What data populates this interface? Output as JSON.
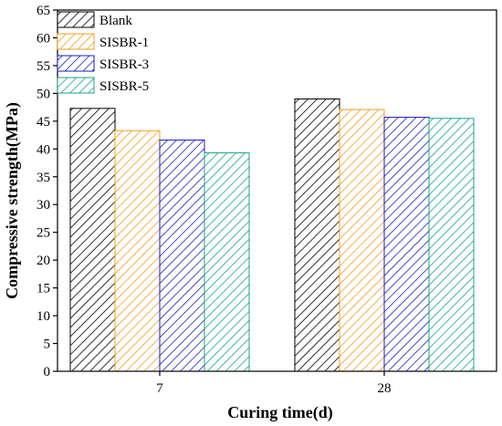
{
  "chart_data": {
    "type": "bar",
    "title": "",
    "xlabel": "Curing time(d)",
    "ylabel": "Compressive strength(MPa)",
    "ylim": [
      0,
      65
    ],
    "yticks": [
      0,
      5,
      10,
      15,
      20,
      25,
      30,
      35,
      40,
      45,
      50,
      55,
      60,
      65
    ],
    "categories": [
      "7",
      "28"
    ],
    "series": [
      {
        "name": "Blank",
        "color": "#000000",
        "values": [
          47.3,
          49.0
        ]
      },
      {
        "name": "SISBR-1",
        "color": "#f39c1f",
        "values": [
          43.3,
          47.1
        ]
      },
      {
        "name": "SISBR-3",
        "color": "#1d1db5",
        "values": [
          41.6,
          45.7
        ]
      },
      {
        "name": "SISBR-5",
        "color": "#17a589",
        "values": [
          39.3,
          45.5
        ]
      }
    ],
    "fill_pattern": "diagonal-hatch",
    "grid": false,
    "legend_position": "top-left"
  }
}
